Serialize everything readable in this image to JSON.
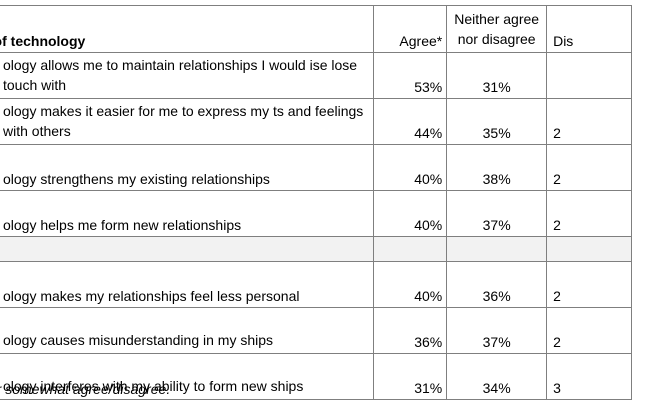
{
  "table": {
    "headers": {
      "statement": "t of technology",
      "agree": "Agree*",
      "neither": "Neither agree nor disagree",
      "disagree": "Dis"
    },
    "positive_rows": [
      {
        "statement": "ology allows me to maintain relationships I would ise lose touch with",
        "agree": "53%",
        "neither": "31%",
        "disagree": ""
      },
      {
        "statement": "ology makes it easier for me to express my ts and feelings with others",
        "agree": "44%",
        "neither": "35%",
        "disagree": "2"
      },
      {
        "statement": "ology strengthens my existing relationships",
        "agree": "40%",
        "neither": "38%",
        "disagree": "2"
      },
      {
        "statement": "ology helps me form new relationships",
        "agree": "40%",
        "neither": "37%",
        "disagree": "2"
      }
    ],
    "negative_rows": [
      {
        "statement": "ology makes my relationships feel less personal",
        "agree": "40%",
        "neither": "36%",
        "disagree": "2"
      },
      {
        "statement": "ology causes misunderstanding in my ships",
        "agree": "36%",
        "neither": "37%",
        "disagree": "2"
      },
      {
        "statement": "ology interferes with my ability to form new ships",
        "agree": "31%",
        "neither": "34%",
        "disagree": "3"
      }
    ]
  },
  "footnote": "y or somewhat agree/disagree."
}
